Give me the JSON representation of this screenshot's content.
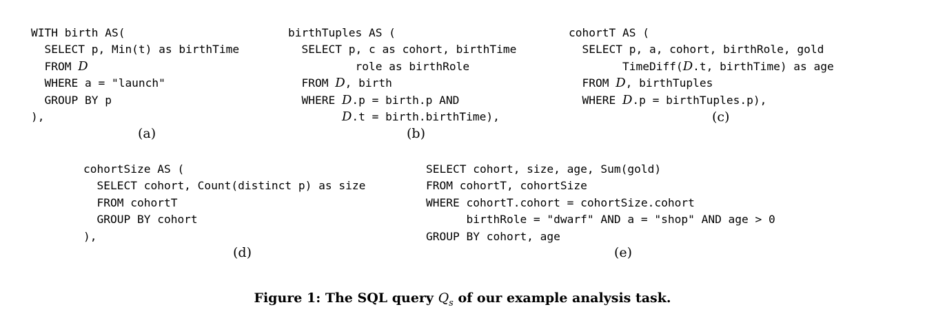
{
  "panels": {
    "a": {
      "lines": [
        "WITH birth AS(",
        "  SELECT p, Min(t) as birthTime",
        "  FROM ",
        "  WHERE a = \"launch\"",
        "  GROUP BY p",
        "),"
      ],
      "table_symbol": "D",
      "label": "(a)"
    },
    "b": {
      "lines": [
        "birthTuples AS (",
        "  SELECT p, c as cohort, birthTime",
        "          role as birthRole",
        "  FROM ",
        ", birth",
        "  WHERE ",
        ".p = birth.p AND",
        "        ",
        ".t = birth.birthTime),"
      ],
      "table_symbol": "D",
      "label": "(b)"
    },
    "c": {
      "lines": [
        "cohortT AS (",
        "  SELECT p, a, cohort, birthRole, gold",
        "        TimeDiff(",
        ".t, birthTime) as age",
        "  FROM ",
        ", birthTuples",
        "  WHERE ",
        ".p = birthTuples.p),"
      ],
      "table_symbol": "D",
      "label": "(c)"
    },
    "d": {
      "lines": [
        "cohortSize AS (",
        "  SELECT cohort, Count(distinct p) as size",
        "  FROM cohortT",
        "  GROUP BY cohort",
        "),"
      ],
      "label": "(d)"
    },
    "e": {
      "lines": [
        "SELECT cohort, size, age, Sum(gold)",
        "FROM cohortT, cohortSize",
        "WHERE cohortT.cohort = cohortSize.cohort",
        "      birthRole = \"dwarf\" AND a = \"shop\" AND age > 0",
        "GROUP BY cohort, age"
      ],
      "label": "(e)"
    }
  },
  "caption": {
    "prefix": "Figure 1: The SQL query ",
    "query_symbol": "Q",
    "query_subscript": "s",
    "suffix": " of our example analysis task."
  }
}
